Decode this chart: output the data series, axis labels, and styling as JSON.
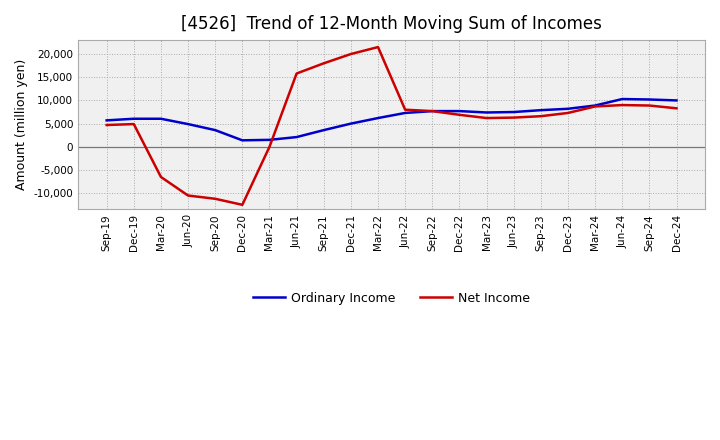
{
  "title": "[4526]  Trend of 12-Month Moving Sum of Incomes",
  "ylabel": "Amount (million yen)",
  "background_color": "#ffffff",
  "plot_bg_color": "#f0f0f0",
  "grid_color": "#aaaaaa",
  "x_labels": [
    "Sep-19",
    "Dec-19",
    "Mar-20",
    "Jun-20",
    "Sep-20",
    "Dec-20",
    "Mar-21",
    "Jun-21",
    "Sep-21",
    "Dec-21",
    "Mar-22",
    "Jun-22",
    "Sep-22",
    "Dec-22",
    "Mar-23",
    "Jun-23",
    "Sep-23",
    "Dec-23",
    "Mar-24",
    "Jun-24",
    "Sep-24",
    "Dec-24"
  ],
  "ordinary_income": [
    5700,
    6050,
    6050,
    4900,
    3600,
    1400,
    1500,
    2100,
    3600,
    5000,
    6200,
    7300,
    7700,
    7700,
    7400,
    7500,
    7900,
    8200,
    8900,
    10300,
    10200,
    10000
  ],
  "net_income": [
    4700,
    4900,
    -6500,
    -10500,
    -11200,
    -12500,
    0,
    15800,
    18000,
    20000,
    21500,
    8000,
    7700,
    6900,
    6200,
    6300,
    6600,
    7300,
    8700,
    9000,
    8900,
    8300
  ],
  "ordinary_color": "#0000cc",
  "net_color": "#cc0000",
  "ylim": [
    -13500,
    23000
  ],
  "yticks": [
    -10000,
    -5000,
    0,
    5000,
    10000,
    15000,
    20000
  ],
  "line_width": 1.8,
  "title_fontsize": 12,
  "tick_fontsize": 7.5,
  "label_fontsize": 9,
  "legend_fontsize": 9
}
